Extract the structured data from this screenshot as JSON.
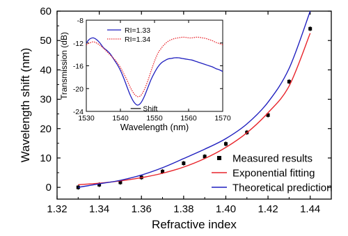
{
  "chart_data": [
    {
      "type": "scatter",
      "xlabel": "Refractive index",
      "ylabel": "Wavelength shift (nm)",
      "xlim": [
        1.32,
        1.45
      ],
      "ylim": [
        -4,
        60
      ],
      "xticks": [
        "1.32",
        "1.34",
        "1.36",
        "1.38",
        "1.40",
        "1.42",
        "1.44"
      ],
      "yticks": [
        "0",
        "10",
        "20",
        "30",
        "40",
        "50",
        "60"
      ],
      "legend_position": "bottom-right",
      "series": [
        {
          "name": "Measured results",
          "kind": "points",
          "color": "#000000",
          "x": [
            1.33,
            1.34,
            1.35,
            1.36,
            1.37,
            1.38,
            1.39,
            1.4,
            1.41,
            1.42,
            1.43,
            1.44
          ],
          "y": [
            0,
            0.9,
            1.7,
            3.4,
            5.4,
            8.2,
            10.5,
            14.8,
            18.7,
            24.6,
            36.0,
            54.0
          ]
        },
        {
          "name": "Exponential fitting",
          "kind": "line",
          "color": "#e8242b",
          "x": [
            1.33,
            1.34,
            1.35,
            1.36,
            1.37,
            1.38,
            1.39,
            1.4,
            1.41,
            1.42,
            1.43,
            1.44
          ],
          "y": [
            0.9,
            1.4,
            2.2,
            3.3,
            4.8,
            6.9,
            9.8,
            13.6,
            18.6,
            25.4,
            34.5,
            52.5
          ]
        },
        {
          "name": "Theoretical prediction",
          "kind": "line",
          "color": "#1f1fbf",
          "x": [
            1.33,
            1.34,
            1.35,
            1.36,
            1.37,
            1.38,
            1.39,
            1.4,
            1.41,
            1.42,
            1.43,
            1.44
          ],
          "y": [
            0,
            1.2,
            2.4,
            4.2,
            6.7,
            9.8,
            13.0,
            16.6,
            21.6,
            29.0,
            40.5,
            60.0
          ]
        }
      ]
    },
    {
      "type": "line",
      "xlabel": "Wavelength (nm)",
      "ylabel": "Transmission (dB)",
      "xlim": [
        1530,
        1570
      ],
      "ylim": [
        -24,
        -8
      ],
      "xticks": [
        "1530",
        "1540",
        "1550",
        "1560",
        "1570"
      ],
      "yticks": [
        "-24",
        "-20",
        "-16",
        "-12",
        "-8"
      ],
      "legend_position": "top-left",
      "annotation": "Shift",
      "series": [
        {
          "name": "RI=1.33",
          "style": "solid",
          "color": "#1f1fbf",
          "x": [
            1530,
            1531,
            1532,
            1533,
            1534,
            1535,
            1536,
            1537,
            1538,
            1539,
            1540,
            1541,
            1542,
            1543,
            1544,
            1545,
            1546,
            1547,
            1548,
            1549,
            1550,
            1551,
            1552,
            1553,
            1554,
            1555,
            1556,
            1557,
            1558,
            1559,
            1560,
            1561,
            1562,
            1563,
            1564,
            1565,
            1566,
            1567,
            1568,
            1569,
            1570
          ],
          "y": [
            -12.0,
            -11.3,
            -11.1,
            -11.4,
            -12.0,
            -12.8,
            -13.3,
            -13.9,
            -14.8,
            -15.7,
            -16.8,
            -18.2,
            -19.8,
            -21.3,
            -22.4,
            -22.9,
            -22.5,
            -21.4,
            -19.9,
            -18.4,
            -17.2,
            -16.2,
            -15.5,
            -15.1,
            -14.8,
            -14.7,
            -14.6,
            -14.6,
            -14.7,
            -14.8,
            -14.9,
            -15.0,
            -15.2,
            -15.4,
            -15.6,
            -15.8,
            -16.0,
            -16.2,
            -16.5,
            -16.7,
            -17.0
          ]
        },
        {
          "name": "RI=1.34",
          "style": "dotted",
          "color": "#e8242b",
          "x": [
            1530,
            1531,
            1532,
            1533,
            1534,
            1535,
            1536,
            1537,
            1538,
            1539,
            1540,
            1541,
            1542,
            1543,
            1544,
            1545,
            1546,
            1547,
            1548,
            1549,
            1550,
            1551,
            1552,
            1553,
            1554,
            1555,
            1556,
            1557,
            1558,
            1559,
            1560,
            1561,
            1562,
            1563,
            1564,
            1565,
            1566,
            1567,
            1568,
            1569,
            1570
          ],
          "y": [
            -12.3,
            -12.0,
            -11.8,
            -12.0,
            -12.4,
            -12.9,
            -13.5,
            -14.1,
            -14.7,
            -15.4,
            -16.3,
            -17.4,
            -18.6,
            -19.9,
            -20.9,
            -21.4,
            -21.2,
            -20.2,
            -18.7,
            -16.9,
            -15.2,
            -13.8,
            -12.9,
            -12.2,
            -11.7,
            -11.4,
            -11.2,
            -11.1,
            -11.0,
            -11.0,
            -11.1,
            -11.1,
            -11.0,
            -11.0,
            -11.1,
            -11.2,
            -11.4,
            -11.6,
            -11.9,
            -12.1,
            -12.3
          ]
        }
      ]
    }
  ]
}
